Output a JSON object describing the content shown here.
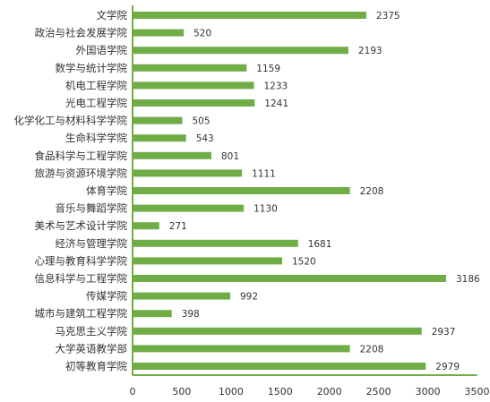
{
  "colors": {
    "bar": "#70AD47",
    "axis": "#70AD47",
    "text": "#333333",
    "background": "#FFFFFF"
  },
  "chart_data": {
    "type": "bar",
    "orientation": "horizontal",
    "title": "",
    "xlabel": "",
    "ylabel": "",
    "categories": [
      "文学院",
      "政治与社会发展学院",
      "外国语学院",
      "数学与统计学院",
      "机电工程学院",
      "光电工程学院",
      "化学化工与材料科学学院",
      "生命科学学院",
      "食品科学与工程学院",
      "旅游与资源环境学院",
      "体育学院",
      "音乐与舞蹈学院",
      "美术与艺术设计学院",
      "经济与管理学院",
      "心理与教育科学学院",
      "信息科学与工程学院",
      "传媒学院",
      "城市与建筑工程学院",
      "马克思主义学院",
      "大学英语教学部",
      "初等教育学院"
    ],
    "values": [
      2375,
      520,
      2193,
      1159,
      1233,
      1241,
      505,
      543,
      801,
      1111,
      2208,
      1130,
      271,
      1681,
      1520,
      3186,
      992,
      398,
      2937,
      2208,
      2979
    ],
    "xlim": [
      0,
      3500
    ],
    "xticks": [
      0,
      500,
      1000,
      1500,
      2000,
      2500,
      3000,
      3500
    ],
    "data_labels": true,
    "grid": false,
    "legend": "none"
  }
}
